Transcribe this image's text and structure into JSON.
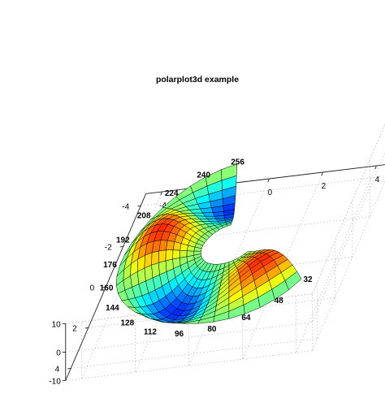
{
  "chart_data": {
    "type": "surface",
    "title": "polarplot3d example",
    "colormap": "jet",
    "x_ticks": [
      "-4",
      "-2",
      "0",
      "2",
      "4"
    ],
    "y_ticks": [
      "-4",
      "-2",
      "0",
      "2",
      "4"
    ],
    "z_ticks": [
      "-10",
      "0",
      "10"
    ],
    "angle_labels": [
      "32",
      "48",
      "64",
      "80",
      "96",
      "112",
      "128",
      "144",
      "160",
      "176",
      "192",
      "208",
      "224",
      "240",
      "256"
    ],
    "radial_range": [
      1,
      4
    ],
    "angular_range_deg": [
      32,
      256
    ],
    "grid": true,
    "colors": {
      "mesh": "#000000",
      "grid": "#b8b8b8",
      "background": "#ffffff"
    }
  }
}
